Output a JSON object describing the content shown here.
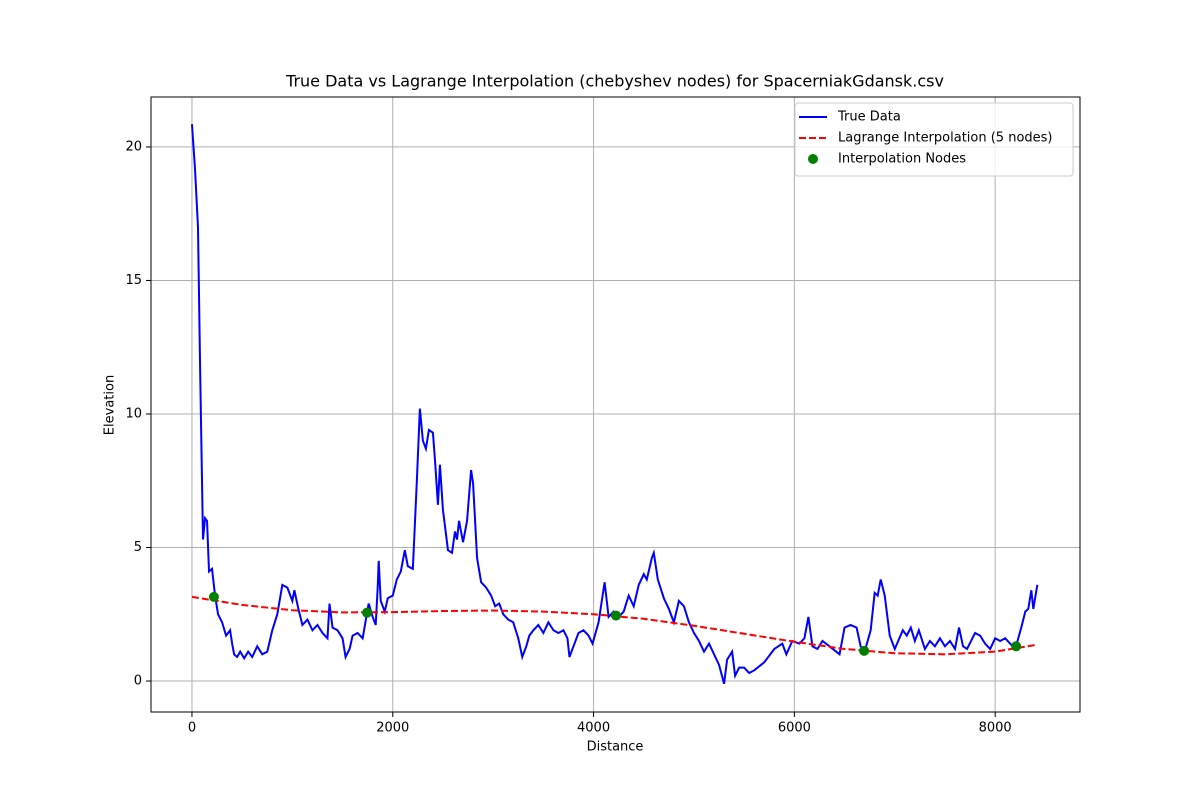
{
  "chart_data": {
    "type": "line",
    "title": "True Data vs Lagrange Interpolation (chebyshev nodes) for SpacerniakGdansk.csv",
    "x_label": "Distance",
    "y_label": "Elevation",
    "xlim": [
      -408,
      8845
    ],
    "ylim": [
      -1.16,
      21.87
    ],
    "xticks": [
      0,
      2000,
      4000,
      6000,
      8000
    ],
    "yticks": [
      0,
      5,
      10,
      15,
      20
    ],
    "grid": true,
    "legend": "upper right",
    "series": [
      {
        "name": "True Data",
        "type": "line",
        "color": "#0000ff",
        "linestyle": "solid",
        "x": [
          0,
          30,
          60,
          80,
          100,
          110,
          130,
          150,
          170,
          200,
          230,
          260,
          300,
          340,
          380,
          400,
          420,
          450,
          480,
          520,
          560,
          600,
          650,
          700,
          750,
          800,
          850,
          900,
          950,
          1000,
          1020,
          1060,
          1100,
          1150,
          1200,
          1250,
          1300,
          1350,
          1370,
          1400,
          1450,
          1500,
          1530,
          1570,
          1600,
          1650,
          1700,
          1760,
          1800,
          1830,
          1850,
          1860,
          1880,
          1920,
          1950,
          2000,
          2040,
          2080,
          2120,
          2150,
          2200,
          2240,
          2270,
          2300,
          2330,
          2360,
          2400,
          2420,
          2450,
          2470,
          2500,
          2550,
          2590,
          2620,
          2640,
          2660,
          2700,
          2740,
          2780,
          2800,
          2840,
          2880,
          2930,
          2980,
          3020,
          3060,
          3100,
          3150,
          3200,
          3250,
          3290,
          3330,
          3360,
          3400,
          3450,
          3500,
          3550,
          3600,
          3650,
          3700,
          3740,
          3760,
          3800,
          3850,
          3900,
          3950,
          3990,
          4050,
          4110,
          4150,
          4200,
          4250,
          4300,
          4350,
          4400,
          4450,
          4500,
          4530,
          4580,
          4600,
          4640,
          4700,
          4750,
          4800,
          4850,
          4900,
          4950,
          5000,
          5050,
          5100,
          5150,
          5200,
          5250,
          5300,
          5330,
          5380,
          5410,
          5450,
          5500,
          5550,
          5600,
          5700,
          5800,
          5880,
          5920,
          5980,
          6050,
          6100,
          6140,
          6180,
          6230,
          6280,
          6350,
          6450,
          6500,
          6560,
          6620,
          6660,
          6700,
          6760,
          6800,
          6830,
          6860,
          6900,
          6950,
          7000,
          7080,
          7120,
          7160,
          7200,
          7240,
          7300,
          7350,
          7400,
          7450,
          7500,
          7550,
          7600,
          7640,
          7680,
          7720,
          7800,
          7850,
          7900,
          7950,
          8000,
          8050,
          8100,
          8150,
          8200,
          8260,
          8300,
          8330,
          8360,
          8380,
          8420
        ],
        "values": [
          20.85,
          19.2,
          17,
          12,
          7.5,
          5.3,
          6.1,
          6.0,
          4.1,
          4.2,
          3.2,
          2.5,
          2.2,
          1.7,
          1.9,
          1.4,
          1.0,
          0.9,
          1.1,
          0.85,
          1.1,
          0.9,
          1.3,
          1.0,
          1.1,
          1.9,
          2.5,
          3.6,
          3.5,
          3.0,
          3.4,
          2.7,
          2.1,
          2.3,
          1.9,
          2.1,
          1.8,
          1.6,
          2.9,
          2.0,
          1.9,
          1.6,
          0.9,
          1.2,
          1.7,
          1.8,
          1.6,
          2.9,
          2.4,
          2.1,
          3.5,
          4.5,
          3.0,
          2.6,
          3.1,
          3.2,
          3.8,
          4.1,
          4.9,
          4.3,
          4.2,
          7.5,
          10.2,
          9.0,
          8.7,
          9.4,
          9.3,
          8.3,
          6.6,
          8.1,
          6.4,
          4.9,
          4.8,
          5.6,
          5.3,
          6.0,
          5.2,
          6.0,
          7.9,
          7.4,
          4.6,
          3.7,
          3.5,
          3.2,
          2.8,
          2.9,
          2.5,
          2.3,
          2.2,
          1.6,
          0.9,
          1.3,
          1.7,
          1.9,
          2.1,
          1.8,
          2.2,
          1.9,
          1.8,
          1.9,
          1.6,
          0.9,
          1.3,
          1.8,
          1.9,
          1.7,
          1.4,
          2.2,
          3.7,
          2.4,
          2.6,
          2.4,
          2.6,
          3.2,
          2.8,
          3.6,
          4.0,
          3.8,
          4.6,
          4.8,
          3.8,
          3.1,
          2.7,
          2.2,
          3.0,
          2.8,
          2.2,
          1.8,
          1.5,
          1.1,
          1.4,
          1.0,
          0.6,
          -0.1,
          0.8,
          1.1,
          0.2,
          0.5,
          0.5,
          0.3,
          0.4,
          0.7,
          1.2,
          1.4,
          1.0,
          1.5,
          1.4,
          1.6,
          2.4,
          1.3,
          1.2,
          1.5,
          1.3,
          1.0,
          2.0,
          2.1,
          2.0,
          1.3,
          1.1,
          1.9,
          3.3,
          3.2,
          3.8,
          3.2,
          1.7,
          1.2,
          1.9,
          1.7,
          2.0,
          1.5,
          1.9,
          1.2,
          1.5,
          1.3,
          1.6,
          1.3,
          1.5,
          1.2,
          2.0,
          1.3,
          1.2,
          1.8,
          1.7,
          1.4,
          1.2,
          1.6,
          1.5,
          1.6,
          1.4,
          1.2,
          2.0,
          2.6,
          2.7,
          3.4,
          2.7,
          3.6
        ]
      },
      {
        "name": "Lagrange Interpolation (5 nodes)",
        "type": "line",
        "color": "#ff0000",
        "linestyle": "dashed",
        "x": [
          0,
          500,
          1000,
          1500,
          2000,
          2500,
          3000,
          3500,
          4000,
          4500,
          5000,
          5500,
          6000,
          6500,
          7000,
          7500,
          8000,
          8400
        ],
        "values": [
          3.15,
          2.85,
          2.65,
          2.57,
          2.58,
          2.62,
          2.64,
          2.6,
          2.5,
          2.33,
          2.07,
          1.77,
          1.47,
          1.2,
          1.04,
          1.0,
          1.1,
          1.35
        ]
      },
      {
        "name": "Interpolation Nodes",
        "type": "scatter",
        "color": "#008000",
        "x": [
          219,
          1744,
          4224,
          6695,
          8209
        ],
        "values": [
          3.15,
          2.56,
          2.45,
          1.13,
          1.3
        ]
      }
    ]
  }
}
